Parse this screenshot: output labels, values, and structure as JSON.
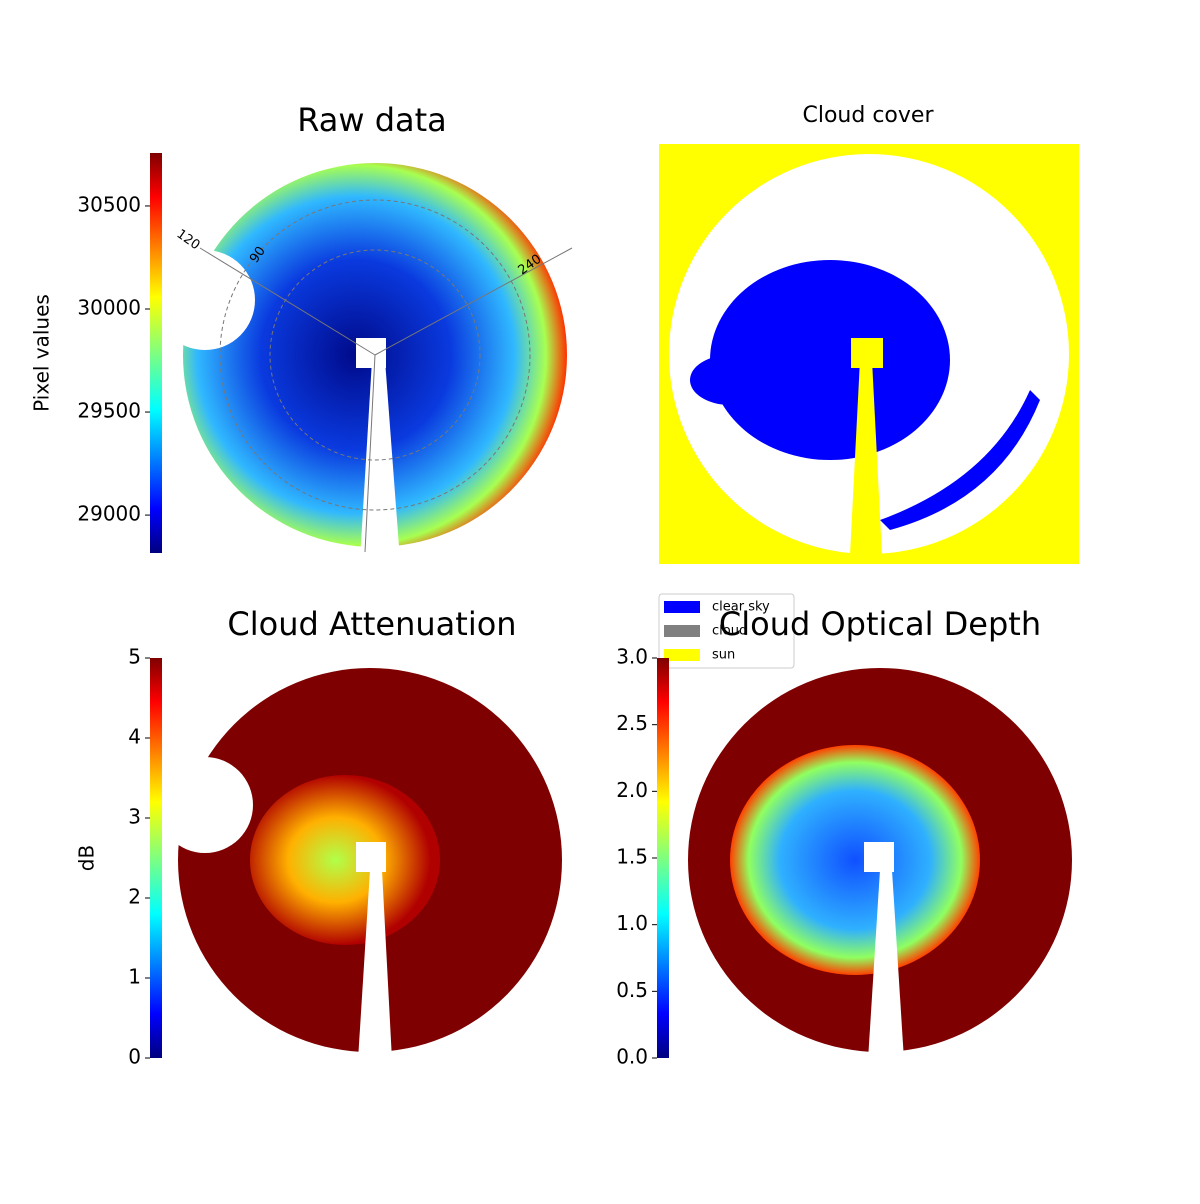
{
  "chart_data": [
    {
      "type": "heatmap",
      "title": "Raw data",
      "colorbar_label": "Pixel values",
      "clim": [
        28816,
        30757
      ],
      "cticks": [
        29000,
        29500,
        30000,
        30500
      ],
      "colormap": "jet",
      "polar_labels": [
        "120",
        "90",
        "240"
      ]
    },
    {
      "type": "classmap",
      "title": "Cloud cover",
      "legend": [
        {
          "name": "clear sky",
          "color": "#0000ff"
        },
        {
          "name": "cloud",
          "color": "#808080"
        },
        {
          "name": "sun",
          "color": "#ffff00"
        }
      ]
    },
    {
      "type": "heatmap",
      "title": "Cloud Attenuation",
      "colorbar_label": "dB",
      "clim": [
        0,
        5
      ],
      "cticks": [
        0,
        1,
        2,
        3,
        4,
        5
      ],
      "colormap": "jet"
    },
    {
      "type": "heatmap",
      "title": "Cloud Optical Depth",
      "clim": [
        0,
        3
      ],
      "cticks": [
        {
          "value": 0,
          "label": "0.0"
        },
        0.5,
        {
          "value": 1,
          "label": "1.0"
        },
        1.5,
        {
          "value": 2,
          "label": "2.0"
        },
        2.5,
        {
          "value": 3,
          "label": "3.0"
        }
      ],
      "colormap": "jet"
    }
  ]
}
